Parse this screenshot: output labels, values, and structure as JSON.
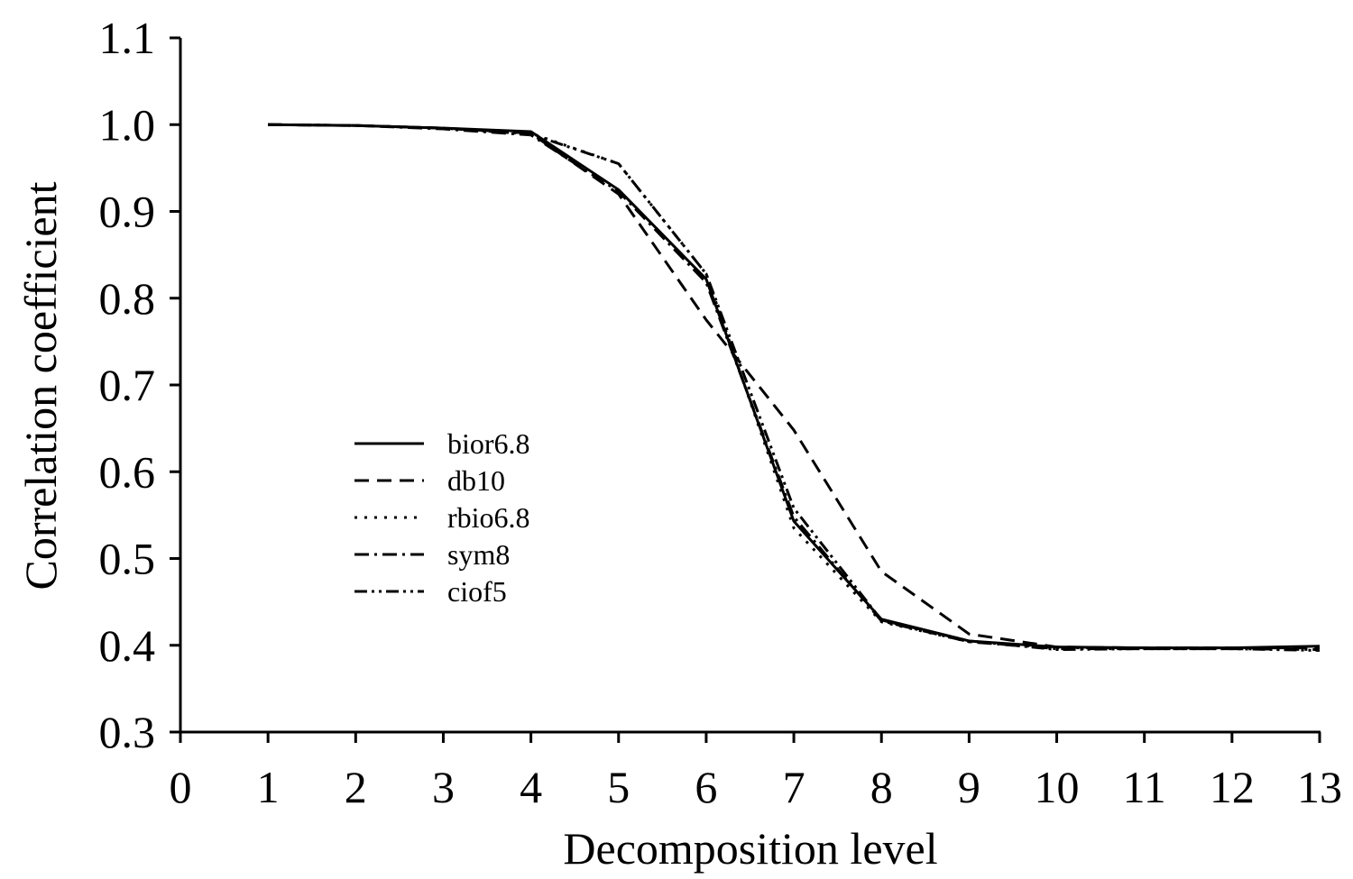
{
  "chart_data": {
    "type": "line",
    "xlabel": "Decomposition level",
    "ylabel": "Correlation coefficient",
    "xlim": [
      0,
      13
    ],
    "ylim": [
      0.3,
      1.1
    ],
    "xticks": [
      "0",
      "1",
      "2",
      "3",
      "4",
      "5",
      "6",
      "7",
      "8",
      "9",
      "10",
      "11",
      "12",
      "13"
    ],
    "yticks": [
      "0.3",
      "0.4",
      "0.5",
      "0.6",
      "0.7",
      "0.8",
      "0.9",
      "1.0",
      "1.1"
    ],
    "grid": false,
    "legend_position": "center-left",
    "x": [
      1,
      2,
      3,
      4,
      5,
      6,
      7,
      8,
      9,
      10,
      11,
      12,
      13
    ],
    "series": [
      {
        "name": "bior6.8",
        "style": "solid",
        "values": [
          1.0,
          0.999,
          0.996,
          0.992,
          0.925,
          0.822,
          0.543,
          0.43,
          0.405,
          0.398,
          0.397,
          0.397,
          0.399
        ]
      },
      {
        "name": "db10",
        "style": "dashed",
        "values": [
          1.0,
          0.999,
          0.996,
          0.99,
          0.92,
          0.775,
          0.648,
          0.485,
          0.413,
          0.398,
          0.397,
          0.397,
          0.397
        ]
      },
      {
        "name": "rbio6.8",
        "style": "dotted",
        "values": [
          1.0,
          0.999,
          0.996,
          0.99,
          0.955,
          0.828,
          0.535,
          0.427,
          0.404,
          0.397,
          0.397,
          0.397,
          0.397
        ]
      },
      {
        "name": "sym8",
        "style": "dashdot",
        "values": [
          1.0,
          0.999,
          0.995,
          0.988,
          0.923,
          0.818,
          0.548,
          0.428,
          0.404,
          0.396,
          0.396,
          0.396,
          0.395
        ]
      },
      {
        "name": "ciof5",
        "style": "dashdotdot",
        "values": [
          1.0,
          0.999,
          0.996,
          0.989,
          0.955,
          0.828,
          0.558,
          0.429,
          0.405,
          0.395,
          0.396,
          0.396,
          0.394
        ]
      }
    ]
  }
}
